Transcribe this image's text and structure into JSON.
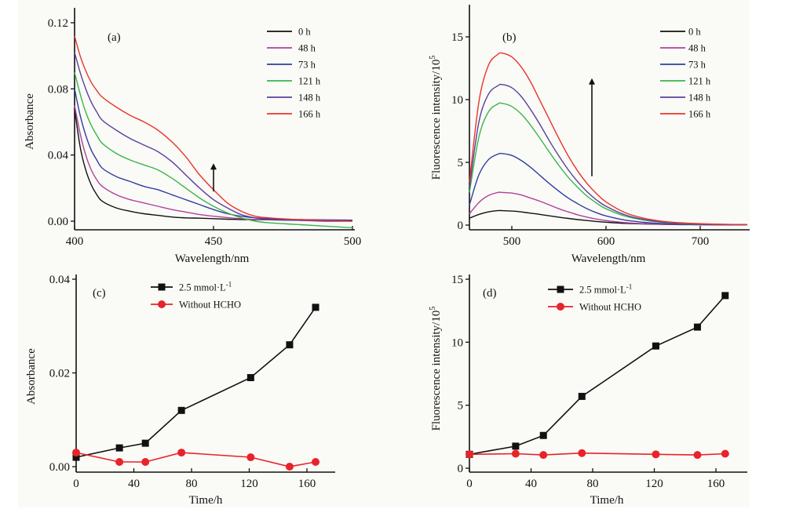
{
  "chart_data": [
    {
      "id": "a",
      "type": "line",
      "panel_label": "(a)",
      "xlabel": "Wavelength/nm",
      "ylabel": "Absorbance",
      "xlim": [
        400,
        502
      ],
      "ylim": [
        -0.002,
        0.13
      ],
      "xticks": [
        400,
        450,
        500
      ],
      "xtick_labels": [
        "400",
        "450",
        "500"
      ],
      "yticks": [
        0,
        0.04,
        0.08,
        0.12
      ],
      "ytick_labels": [
        "0.00",
        "0.04",
        "0.08",
        "0.12"
      ],
      "legend_position": "top-right",
      "annotation": "upward-arrow",
      "arrow": {
        "x": 450,
        "y_from": 0.018,
        "y_to": 0.035
      },
      "x": [
        400,
        402,
        404,
        406,
        408,
        410,
        415,
        420,
        425,
        430,
        435,
        440,
        445,
        450,
        455,
        460,
        465,
        470,
        480,
        490,
        500
      ],
      "series": [
        {
          "name": "0  h",
          "color": "#111111",
          "values": [
            0.068,
            0.045,
            0.031,
            0.022,
            0.016,
            0.012,
            0.008,
            0.006,
            0.0045,
            0.0035,
            0.0025,
            0.002,
            0.0018,
            0.0015,
            0.0012,
            0.001,
            0.0008,
            0.0008,
            0.0006,
            0.0005,
            0.0005
          ]
        },
        {
          "name": "48  h",
          "color": "#b0409a",
          "values": [
            0.07,
            0.053,
            0.04,
            0.031,
            0.025,
            0.021,
            0.016,
            0.013,
            0.011,
            0.009,
            0.007,
            0.0055,
            0.004,
            0.003,
            0.0022,
            0.0015,
            0.001,
            0.0008,
            0.0006,
            0.0005,
            0.0002
          ]
        },
        {
          "name": "73  h",
          "color": "#2f3ea0",
          "values": [
            0.08,
            0.064,
            0.052,
            0.043,
            0.037,
            0.032,
            0.027,
            0.024,
            0.021,
            0.019,
            0.016,
            0.013,
            0.01,
            0.007,
            0.0045,
            0.003,
            0.002,
            0.0015,
            0.001,
            0.0008,
            0.0006
          ]
        },
        {
          "name": "121 h",
          "color": "#3ab54a",
          "values": [
            0.09,
            0.077,
            0.066,
            0.058,
            0.052,
            0.047,
            0.041,
            0.037,
            0.034,
            0.031,
            0.026,
            0.02,
            0.014,
            0.009,
            0.005,
            0.002,
            0.0,
            -0.001,
            -0.002,
            -0.003,
            -0.004
          ]
        },
        {
          "name": "148 h",
          "color": "#5b3f9e",
          "values": [
            0.102,
            0.09,
            0.08,
            0.072,
            0.066,
            0.061,
            0.055,
            0.05,
            0.046,
            0.042,
            0.036,
            0.028,
            0.02,
            0.013,
            0.008,
            0.004,
            0.002,
            0.001,
            0.0005,
            0.0,
            0.0
          ]
        },
        {
          "name": "166 h",
          "color": "#e8352a",
          "values": [
            0.112,
            0.1,
            0.091,
            0.084,
            0.079,
            0.075,
            0.069,
            0.064,
            0.06,
            0.055,
            0.048,
            0.039,
            0.028,
            0.019,
            0.011,
            0.006,
            0.003,
            0.002,
            0.001,
            0.0005,
            0.0
          ]
        }
      ]
    },
    {
      "id": "b",
      "type": "line",
      "panel_label": "(b)",
      "xlabel": "Wavelength/nm",
      "ylabel": "Fluorescence intensity/10",
      "ylabel_superscript": "5",
      "xlim": [
        455,
        750
      ],
      "ylim": [
        -0.2,
        17.5
      ],
      "xticks": [
        500,
        600,
        700
      ],
      "xtick_labels": [
        "500",
        "600",
        "700"
      ],
      "yticks": [
        0,
        5,
        10,
        15
      ],
      "ytick_labels": [
        "0",
        "5",
        "10",
        "15"
      ],
      "legend_position": "top-right",
      "annotation": "upward-arrow",
      "arrow": {
        "x": 585,
        "y_from": 3.9,
        "y_to": 11.7
      },
      "x": [
        455,
        465,
        475,
        485,
        490,
        500,
        510,
        520,
        530,
        540,
        550,
        560,
        570,
        580,
        590,
        600,
        620,
        640,
        660,
        680,
        700,
        720,
        750
      ],
      "series": [
        {
          "name": "0 h",
          "color": "#111111",
          "values": [
            0.55,
            0.85,
            1.05,
            1.15,
            1.15,
            1.12,
            1.05,
            0.95,
            0.85,
            0.74,
            0.63,
            0.53,
            0.44,
            0.36,
            0.29,
            0.23,
            0.14,
            0.09,
            0.06,
            0.04,
            0.03,
            0.02,
            0.01
          ]
        },
        {
          "name": "48 h",
          "color": "#b0409a",
          "values": [
            0.9,
            1.8,
            2.35,
            2.6,
            2.6,
            2.55,
            2.4,
            2.15,
            1.9,
            1.6,
            1.3,
            1.05,
            0.82,
            0.63,
            0.48,
            0.36,
            0.2,
            0.11,
            0.07,
            0.05,
            0.03,
            0.02,
            0.01
          ]
        },
        {
          "name": "73 h",
          "color": "#2f3ea0",
          "values": [
            1.6,
            4.0,
            5.2,
            5.65,
            5.7,
            5.55,
            5.15,
            4.6,
            3.95,
            3.3,
            2.7,
            2.15,
            1.7,
            1.3,
            0.98,
            0.73,
            0.4,
            0.22,
            0.12,
            0.07,
            0.05,
            0.03,
            0.02
          ]
        },
        {
          "name": "121 h",
          "color": "#3ab54a",
          "values": [
            2.6,
            7.0,
            9.0,
            9.65,
            9.7,
            9.45,
            8.85,
            7.95,
            6.9,
            5.8,
            4.75,
            3.8,
            3.0,
            2.3,
            1.75,
            1.3,
            0.72,
            0.4,
            0.22,
            0.13,
            0.08,
            0.05,
            0.03
          ]
        },
        {
          "name": "148 h",
          "color": "#5b3f9e",
          "values": [
            3.0,
            8.2,
            10.4,
            11.1,
            11.2,
            10.95,
            10.25,
            9.2,
            8.0,
            6.7,
            5.5,
            4.4,
            3.45,
            2.65,
            2.0,
            1.5,
            0.82,
            0.45,
            0.25,
            0.15,
            0.09,
            0.06,
            0.03
          ]
        },
        {
          "name": "166 h",
          "color": "#e8352a",
          "values": [
            3.4,
            9.8,
            12.7,
            13.6,
            13.7,
            13.4,
            12.6,
            11.4,
            9.9,
            8.4,
            6.9,
            5.5,
            4.3,
            3.3,
            2.5,
            1.85,
            1.0,
            0.55,
            0.3,
            0.18,
            0.11,
            0.07,
            0.04
          ]
        }
      ]
    },
    {
      "id": "c",
      "type": "line",
      "panel_label": "(c)",
      "xlabel": "Time/h",
      "ylabel": "Absorbance",
      "xlim": [
        0,
        180
      ],
      "ylim": [
        -0.001,
        0.04
      ],
      "xticks": [
        0,
        40,
        80,
        120,
        160
      ],
      "xtick_labels": [
        "0",
        "40",
        "80",
        "120",
        "160"
      ],
      "yticks": [
        0,
        0.02,
        0.04
      ],
      "ytick_labels": [
        "0.00",
        "0.02",
        "0.04"
      ],
      "legend_position": "top-center",
      "series": [
        {
          "name": "2.5 mmol·L",
          "name_superscript": "-1",
          "color": "#111111",
          "marker": "square",
          "x": [
            0,
            30,
            48,
            73,
            121,
            148,
            166
          ],
          "values": [
            0.002,
            0.004,
            0.005,
            0.012,
            0.019,
            0.026,
            0.034
          ]
        },
        {
          "name": "Without HCHO",
          "color": "#e8232a",
          "marker": "circle",
          "x": [
            0,
            30,
            48,
            73,
            121,
            148,
            166
          ],
          "values": [
            0.003,
            0.001,
            0.001,
            0.003,
            0.002,
            0.0,
            0.001
          ]
        }
      ]
    },
    {
      "id": "d",
      "type": "line",
      "panel_label": "(d)",
      "xlabel": "Time/h",
      "ylabel": "Fluorescence intensity/10",
      "ylabel_superscript": "5",
      "xlim": [
        0,
        180
      ],
      "ylim": [
        -0.2,
        15
      ],
      "xticks": [
        0,
        40,
        80,
        120,
        160
      ],
      "xtick_labels": [
        "0",
        "40",
        "80",
        "120",
        "160"
      ],
      "yticks": [
        0,
        5,
        10,
        15
      ],
      "ytick_labels": [
        "0",
        "5",
        "10",
        "15"
      ],
      "legend_position": "top-center",
      "series": [
        {
          "name": "2.5 mmol·L",
          "name_superscript": "-1",
          "color": "#111111",
          "marker": "square",
          "x": [
            0,
            30,
            48,
            73,
            121,
            148,
            166
          ],
          "values": [
            1.1,
            1.75,
            2.6,
            5.7,
            9.7,
            11.2,
            13.7
          ]
        },
        {
          "name": "Without HCHO",
          "color": "#e8232a",
          "marker": "circle",
          "x": [
            0,
            30,
            48,
            73,
            121,
            148,
            166
          ],
          "values": [
            1.1,
            1.15,
            1.05,
            1.2,
            1.1,
            1.05,
            1.15
          ]
        }
      ]
    }
  ]
}
